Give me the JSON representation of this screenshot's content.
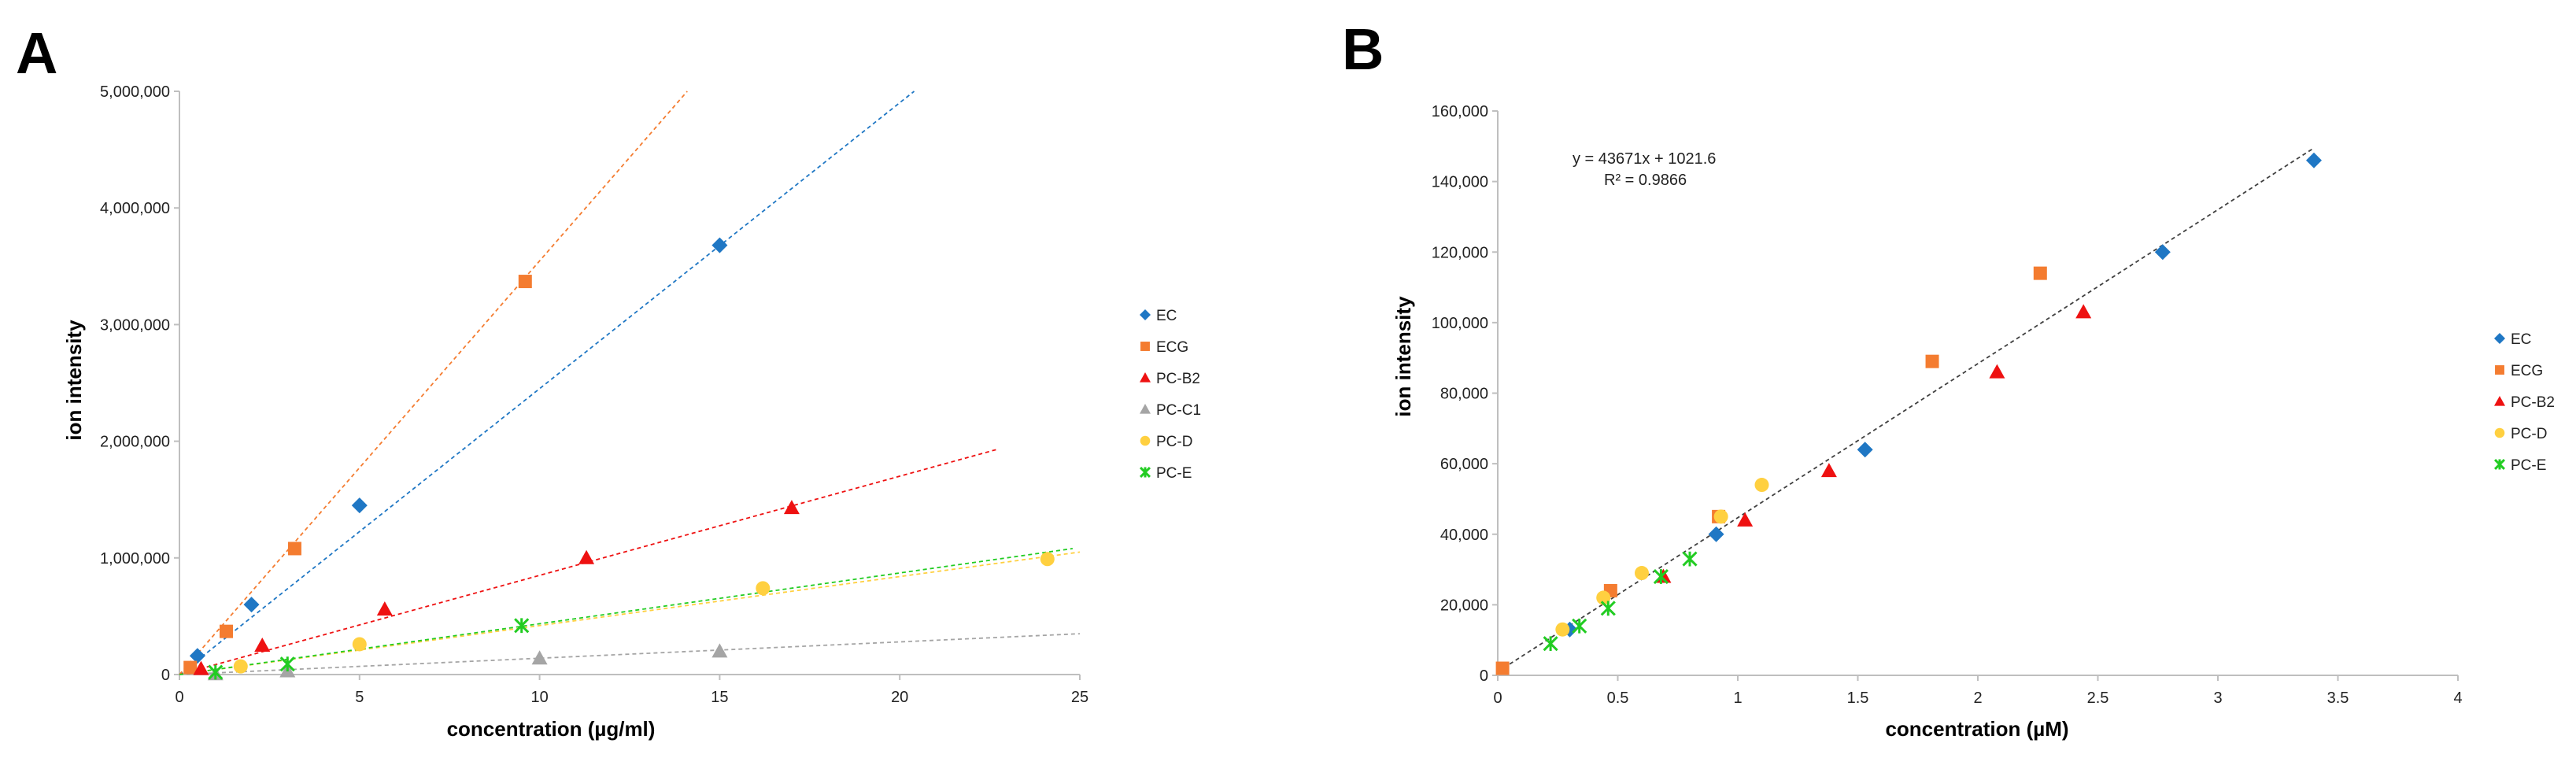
{
  "chart_data": [
    {
      "panel_label": "A",
      "type": "scatter",
      "xlabel": "concentration (µg/ml)",
      "ylabel": "ion intensity",
      "xlim": [
        0,
        25
      ],
      "ylim": [
        0,
        5000000
      ],
      "xticks": [
        0,
        5,
        10,
        15,
        20,
        25
      ],
      "xtick_labels": [
        "0",
        "5",
        "10",
        "15",
        "20",
        "25"
      ],
      "yticks": [
        0,
        1000000,
        2000000,
        3000000,
        4000000,
        5000000
      ],
      "ytick_labels": [
        "0",
        "1,000,000",
        "2,000,000",
        "3,000,000",
        "4,000,000",
        "5,000,000"
      ],
      "legend_position": "right",
      "series": [
        {
          "name": "EC",
          "color": "#1F77C4",
          "marker": "diamond",
          "x": [
            0.5,
            2.0,
            5.0,
            15.0
          ],
          "y": [
            160000,
            600000,
            1450000,
            3680000
          ],
          "trend": {
            "x": [
              0,
              20.4
            ],
            "y": [
              0,
              5000000
            ]
          }
        },
        {
          "name": "ECG",
          "color": "#F47C30",
          "marker": "square",
          "x": [
            0.3,
            1.3,
            3.2,
            9.6
          ],
          "y": [
            60000,
            370000,
            1080000,
            3370000
          ],
          "trend": {
            "x": [
              0,
              14.1
            ],
            "y": [
              0,
              5000000
            ]
          }
        },
        {
          "name": "PC-B2",
          "color": "#EE1111",
          "marker": "triangle",
          "x": [
            0.6,
            2.3,
            5.7,
            11.3,
            17.0
          ],
          "y": [
            50000,
            250000,
            560000,
            1000000,
            1430000
          ],
          "trend": {
            "x": [
              0,
              22.7
            ],
            "y": [
              0,
              1930000
            ]
          }
        },
        {
          "name": "PC-C1",
          "color": "#A5A5A5",
          "marker": "triangle",
          "x": [
            1.0,
            3.0,
            10.0,
            15.0
          ],
          "y": [
            5000,
            30000,
            140000,
            200000
          ],
          "trend": {
            "x": [
              0,
              25
            ],
            "y": [
              0,
              350000
            ]
          }
        },
        {
          "name": "PC-D",
          "color": "#FFD040",
          "marker": "circle",
          "x": [
            1.7,
            5.0,
            16.2,
            24.1
          ],
          "y": [
            70000,
            260000,
            740000,
            990000
          ],
          "trend": {
            "x": [
              0,
              25
            ],
            "y": [
              0,
              1050000
            ]
          }
        },
        {
          "name": "PC-E",
          "color": "#22CC22",
          "marker": "star",
          "x": [
            1.0,
            3.0,
            9.5
          ],
          "y": [
            20000,
            90000,
            420000
          ],
          "trend": {
            "x": [
              0,
              24.8
            ],
            "y": [
              0,
              1080000
            ]
          }
        }
      ]
    },
    {
      "panel_label": "B",
      "type": "scatter",
      "xlabel": "concentration (µM)",
      "ylabel": "ion intensity",
      "xlim": [
        0,
        4
      ],
      "ylim": [
        0,
        160000
      ],
      "xticks": [
        0,
        0.5,
        1,
        1.5,
        2,
        2.5,
        3,
        3.5,
        4
      ],
      "xtick_labels": [
        "0",
        "0.5",
        "1",
        "1.5",
        "2",
        "2.5",
        "3",
        "3.5",
        "4"
      ],
      "yticks": [
        0,
        20000,
        40000,
        60000,
        80000,
        100000,
        120000,
        140000,
        160000
      ],
      "ytick_labels": [
        "0",
        "20,000",
        "40,000",
        "60,000",
        "80,000",
        "100,000",
        "120,000",
        "140,000",
        "160,000"
      ],
      "legend_position": "right",
      "trend": {
        "x": [
          0,
          3.4
        ],
        "y": [
          1021.6,
          149500
        ],
        "color": "#404040"
      },
      "annotation": {
        "equation": "y = 43671x + 1021.6",
        "r2": "R² = 0.9866"
      },
      "series": [
        {
          "name": "EC",
          "color": "#1F77C4",
          "marker": "diamond",
          "x": [
            0.3,
            0.91,
            1.53,
            2.77,
            3.4
          ],
          "y": [
            13000,
            40000,
            64000,
            120000,
            146000
          ]
        },
        {
          "name": "ECG",
          "color": "#F47C30",
          "marker": "square",
          "x": [
            0.02,
            0.47,
            0.92,
            1.81,
            2.26
          ],
          "y": [
            2000,
            24000,
            45000,
            89000,
            114000
          ]
        },
        {
          "name": "PC-B2",
          "color": "#EE1111",
          "marker": "triangle",
          "x": [
            0.69,
            1.03,
            1.38,
            2.08,
            2.44
          ],
          "y": [
            28000,
            44000,
            58000,
            86000,
            103000
          ]
        },
        {
          "name": "PC-D",
          "color": "#FFD040",
          "marker": "circle",
          "x": [
            0.27,
            0.44,
            0.6,
            0.93,
            1.1
          ],
          "y": [
            13000,
            22000,
            29000,
            45000,
            54000
          ]
        },
        {
          "name": "PC-E",
          "color": "#22CC22",
          "marker": "star",
          "x": [
            0.22,
            0.34,
            0.46,
            0.68,
            0.8
          ],
          "y": [
            9000,
            14000,
            19000,
            28000,
            33000
          ]
        }
      ]
    }
  ]
}
